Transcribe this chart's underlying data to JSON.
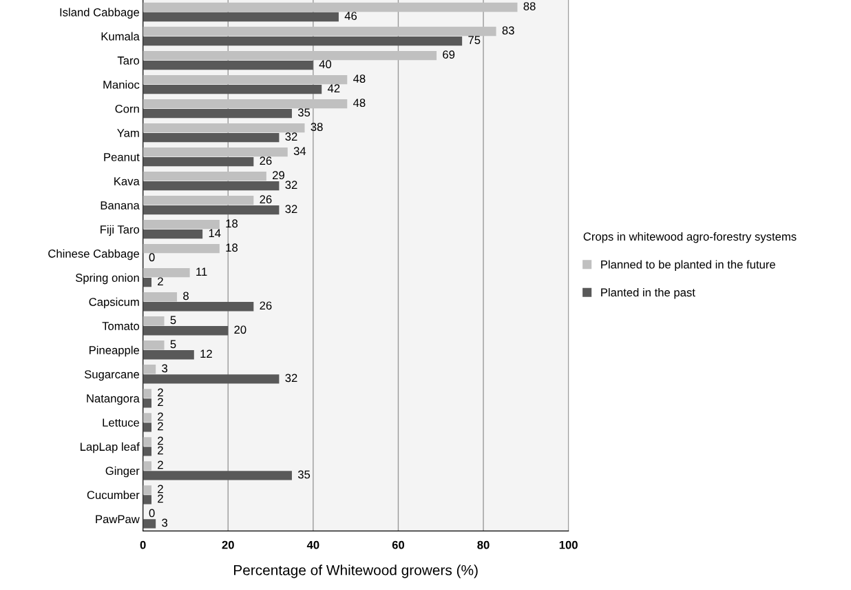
{
  "chart_data": {
    "type": "bar",
    "orientation": "horizontal",
    "categories": [
      "Island Cabbage",
      "Kumala",
      "Taro",
      "Manioc",
      "Corn",
      "Yam",
      "Peanut",
      "Kava",
      "Banana",
      "Fiji Taro",
      "Chinese Cabbage",
      "Spring onion",
      "Capsicum",
      "Tomato",
      "Pineapple",
      "Sugarcane",
      "Natangora",
      "Lettuce",
      "LapLap leaf",
      "Ginger",
      "Cucumber",
      "PawPaw"
    ],
    "series": [
      {
        "name": "Planned to be planted in the future",
        "color": "#c0c0c0",
        "values": [
          88,
          83,
          69,
          48,
          48,
          38,
          34,
          29,
          26,
          18,
          18,
          11,
          8,
          5,
          5,
          3,
          2,
          2,
          2,
          2,
          2,
          0
        ]
      },
      {
        "name": "Planted in the past",
        "color": "#595959",
        "values": [
          46,
          75,
          40,
          42,
          35,
          32,
          26,
          32,
          32,
          14,
          0,
          2,
          26,
          20,
          12,
          32,
          2,
          2,
          2,
          35,
          2,
          3
        ]
      }
    ],
    "xlabel": "Percentage of Whitewood growers (%)",
    "legend_title": "Crops in whitewood agro-forestry systems",
    "legend": "right",
    "xlim": [
      0,
      100
    ],
    "xticks": [
      0,
      20,
      40,
      60,
      80,
      100
    ],
    "grid": "x",
    "data_labels": true
  }
}
